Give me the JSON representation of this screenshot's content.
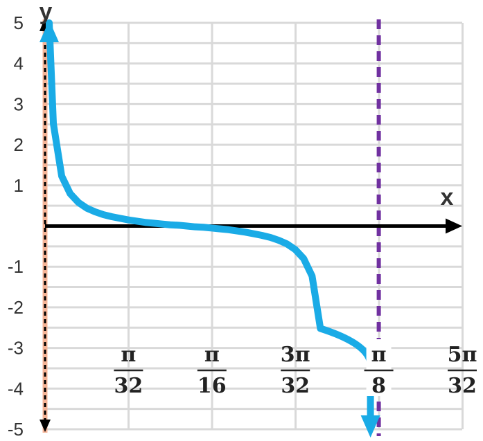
{
  "chart_data": {
    "type": "line",
    "xlabel": "x",
    "ylabel": "y",
    "xlim": [
      0,
      0.49087
    ],
    "ylim": [
      -5,
      5
    ],
    "y_ticks": [
      "5",
      "4",
      "3",
      "2",
      "1",
      "-1",
      "-2",
      "-3",
      "-4",
      "-5"
    ],
    "x_ticks": [
      {
        "num": "π",
        "den": "32"
      },
      {
        "num": "π",
        "den": "16"
      },
      {
        "num": "3π",
        "den": "32"
      },
      {
        "num": "π",
        "den": "8"
      },
      {
        "num": "5π",
        "den": "32"
      }
    ],
    "grid": true,
    "series": [
      {
        "x": [
          0.0049,
          0.0098,
          0.0196,
          0.0295,
          0.0393,
          0.0491,
          0.0589,
          0.0687,
          0.0785,
          0.0884,
          0.0982,
          0.108,
          0.1178,
          0.1276,
          0.1374,
          0.1473,
          0.1571,
          0.1669,
          0.1767,
          0.1865,
          0.1963,
          0.2062,
          0.216,
          0.2258,
          0.2356,
          0.2454,
          0.2552,
          0.2651,
          0.2749,
          0.2847,
          0.2945,
          0.3043,
          0.3142,
          0.324,
          0.3338,
          0.3436,
          0.3534,
          0.3632,
          0.3731,
          0.3829,
          0.3878
        ],
        "y": [
          5.08,
          2.52,
          1.23,
          0.8,
          0.58,
          0.44,
          0.35,
          0.28,
          0.23,
          0.19,
          0.15,
          0.12,
          0.09,
          0.07,
          0.05,
          0.03,
          0.02,
          0.0,
          -0.02,
          -0.03,
          -0.05,
          -0.07,
          -0.09,
          -0.12,
          -0.15,
          -0.19,
          -0.23,
          -0.28,
          -0.35,
          -0.44,
          -0.58,
          -0.8,
          -1.23,
          -2.52,
          -3.0,
          -3.5,
          -4.0,
          -4.5,
          -5.0,
          -5.0,
          -5.0
        ],
        "color": "#1aabe6"
      }
    ],
    "asymptotes": [
      {
        "x": 0,
        "color": "#f5b497"
      },
      {
        "x": 0.3927,
        "color": "#7030a0"
      }
    ],
    "axis_color": "#000000",
    "grid_color": "#d9d9d9"
  }
}
